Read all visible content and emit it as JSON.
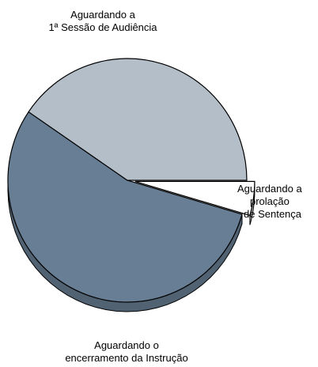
{
  "chart_data": {
    "type": "pie",
    "title": "",
    "slices": [
      {
        "label_lines": [
          "Aguardando a",
          "1ª Sessão de Audiência"
        ],
        "value": 55.0,
        "color": "#687e94"
      },
      {
        "label_lines": [
          "Aguardando a",
          "prolação",
          "de Sentença"
        ],
        "value": 4.5,
        "color": "#ffffff"
      },
      {
        "label_lines": [
          "Aguardando o",
          "encerramento da Instrução"
        ],
        "value": 40.5,
        "color": "#b4bec8"
      }
    ],
    "style": "3d",
    "legend": "none"
  }
}
